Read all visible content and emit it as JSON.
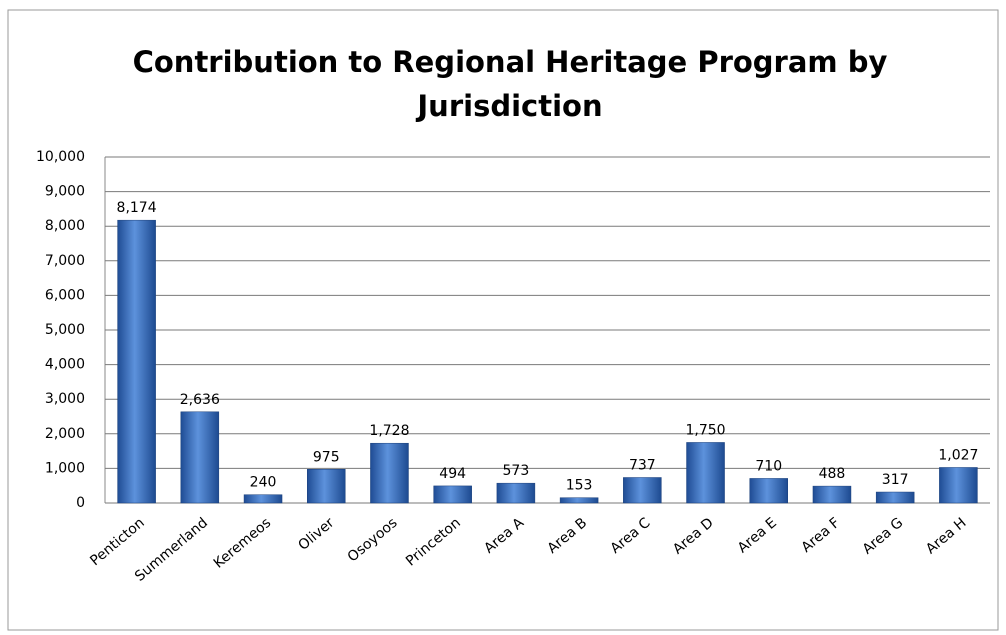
{
  "chart_data": {
    "type": "bar",
    "title": "Contribution to Regional Heritage Program by Jurisdiction",
    "categories": [
      "Penticton",
      "Summerland",
      "Keremeos",
      "Oliver",
      "Osoyoos",
      "Princeton",
      "Area A",
      "Area B",
      "Area C",
      "Area D",
      "Area E",
      "Area F",
      "Area G",
      "Area H"
    ],
    "values": [
      8174,
      2636,
      240,
      975,
      1728,
      494,
      573,
      153,
      737,
      1750,
      710,
      488,
      317,
      1027
    ],
    "value_labels": [
      "8,174",
      "2,636",
      "240",
      "975",
      "1,728",
      "494",
      "573",
      "153",
      "737",
      "1,750",
      "710",
      "488",
      "317",
      "1,027"
    ],
    "color": "#3a6fc4",
    "ylim": [
      0,
      10000
    ],
    "yticks": [
      0,
      {
        "value": 1000,
        "label": "1,000"
      },
      {
        "value": 2000,
        "label": "2,000"
      },
      {
        "value": 3000,
        "label": "3,000"
      },
      {
        "value": 4000,
        "label": "4,000"
      },
      {
        "value": 5000,
        "label": "5,000"
      },
      {
        "value": 6000,
        "label": "6,000"
      },
      {
        "value": 7000,
        "label": "7,000"
      },
      {
        "value": 8000,
        "label": "8,000"
      },
      {
        "value": 9000,
        "label": "9,000"
      },
      {
        "value": 10000,
        "label": "10,000"
      }
    ],
    "grid": true
  }
}
